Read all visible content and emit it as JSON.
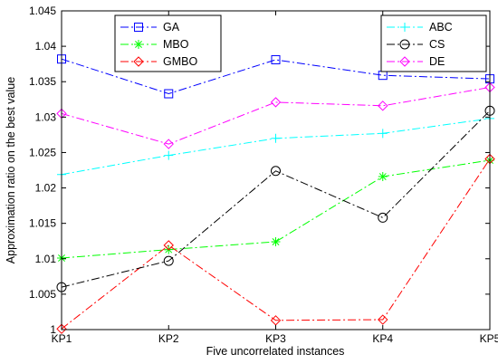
{
  "chart_data": {
    "type": "line",
    "categories": [
      "KP1",
      "KP2",
      "KP3",
      "KP4",
      "KP5"
    ],
    "xlabel": "Five uncorrelated instances",
    "ylabel": "Approximation ratio on the best value",
    "ylim": [
      1,
      1.045
    ],
    "yticks": [
      "1",
      "1.005",
      "1.01",
      "1.015",
      "1.02",
      "1.025",
      "1.03",
      "1.035",
      "1.04",
      "1.045"
    ],
    "grid": false,
    "legends": [
      {
        "placement": "top-left",
        "entries": [
          "GA",
          "MBO",
          "GMBO"
        ]
      },
      {
        "placement": "top-right",
        "entries": [
          "ABC",
          "CS",
          "DE"
        ]
      }
    ],
    "series": [
      {
        "name": "GA",
        "color": "#0000ff",
        "marker": "square",
        "dash": "9,3,2,3",
        "values": [
          1.0382,
          1.0333,
          1.0381,
          1.0359,
          1.0354
        ]
      },
      {
        "name": "MBO",
        "color": "#00ff00",
        "marker": "star",
        "dash": "9,3,2,3",
        "values": [
          1.0101,
          1.0113,
          1.0124,
          1.0216,
          1.0239
        ]
      },
      {
        "name": "GMBO",
        "color": "#ff0000",
        "marker": "diamond",
        "dash": "9,3,2,3",
        "values": [
          1.0001,
          1.0119,
          1.0013,
          1.0014,
          1.0241
        ]
      },
      {
        "name": "ABC",
        "color": "#00ffff",
        "marker": "plus",
        "dash": "9,3,2,3",
        "values": [
          1.0219,
          1.0246,
          1.027,
          1.0277,
          1.0298
        ]
      },
      {
        "name": "CS",
        "color": "#000000",
        "marker": "circle",
        "dash": "9,3,2,3",
        "values": [
          1.006,
          1.0097,
          1.0224,
          1.0158,
          1.0309
        ]
      },
      {
        "name": "DE",
        "color": "#ff00ff",
        "marker": "diamond",
        "dash": "9,3,2,3",
        "values": [
          1.0305,
          1.0262,
          1.0321,
          1.0316,
          1.0342
        ]
      }
    ]
  }
}
